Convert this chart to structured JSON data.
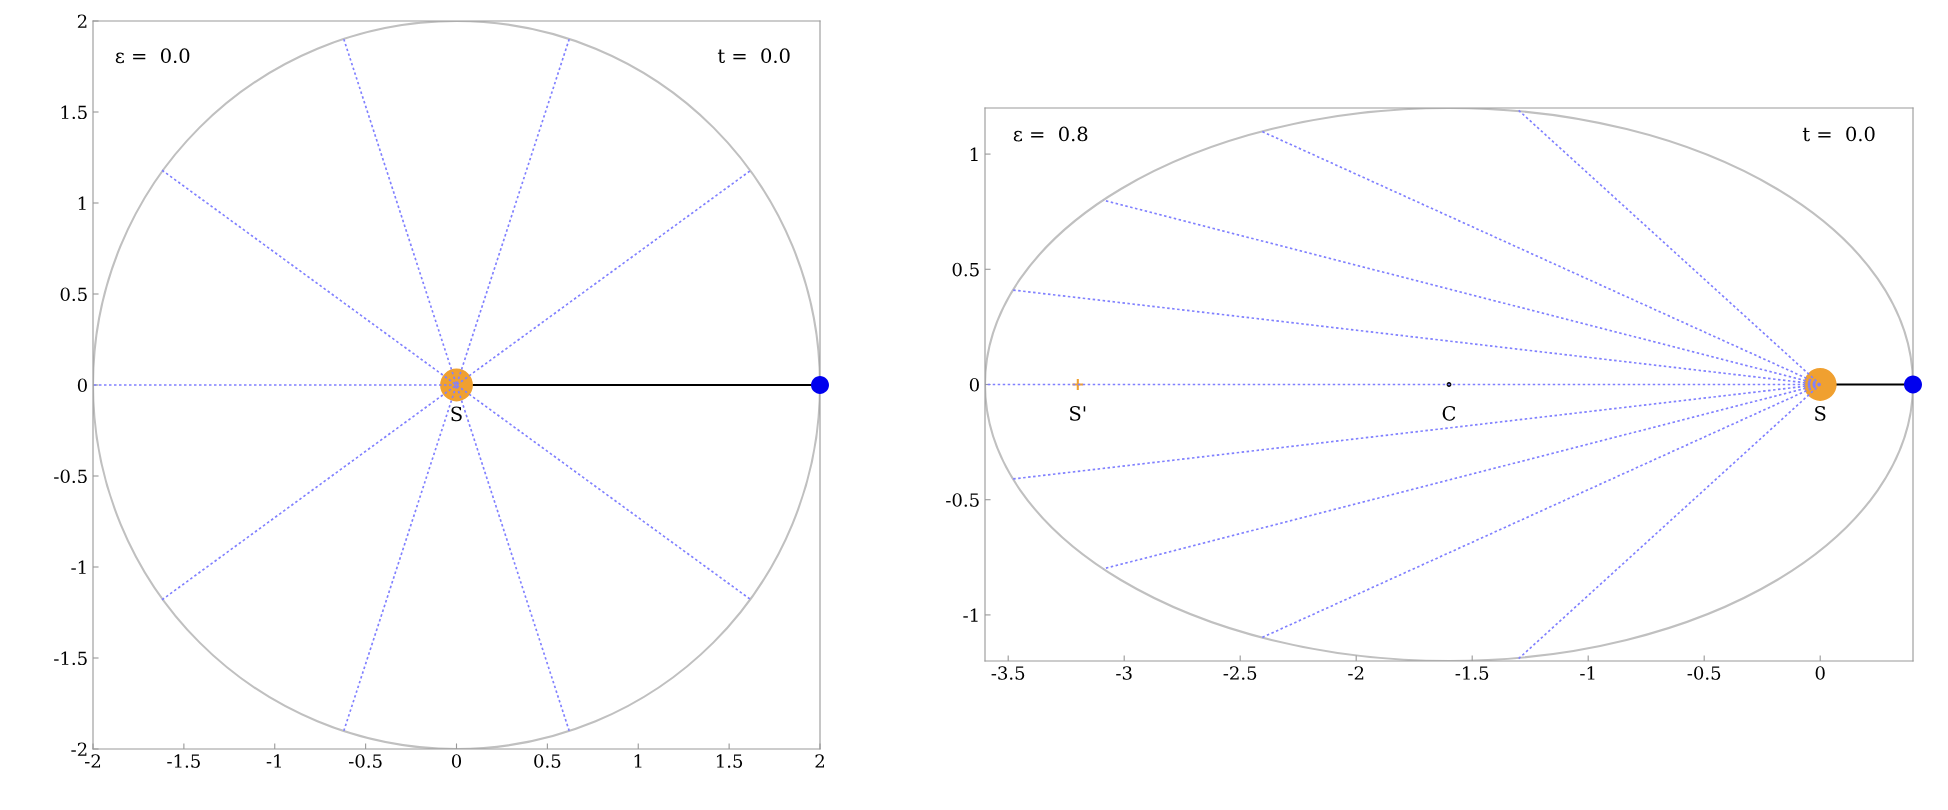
{
  "chart_data": [
    {
      "type": "line",
      "xlim": [
        -2,
        2
      ],
      "ylim": [
        -2,
        2
      ],
      "xticks": [
        -2,
        -1.5,
        -1,
        -0.5,
        0,
        0.5,
        1,
        1.5,
        2
      ],
      "yticks": [
        -2,
        -1.5,
        -1,
        -0.5,
        0,
        0.5,
        1,
        1.5,
        2
      ],
      "grid": false,
      "legend": false,
      "annotations": [
        "ε =  0.0",
        "t =  0.0",
        {
          "text": "S",
          "x": 0,
          "y": 0
        }
      ],
      "series": [
        {
          "color": "#8080ff",
          "line_style": "dotted",
          "marker": "none",
          "x": [
            -1.62,
            1.62
          ],
          "values": [
            -1.18,
            1.18
          ]
        },
        {
          "color": "#8080ff",
          "line_style": "dotted",
          "marker": "none",
          "x": [
            -0.62,
            0.62
          ],
          "values": [
            -1.9,
            1.9
          ]
        },
        {
          "color": "#8080ff",
          "line_style": "dotted",
          "marker": "none",
          "x": [
            -0.62,
            0.62
          ],
          "values": [
            1.9,
            -1.9
          ]
        },
        {
          "color": "#8080ff",
          "line_style": "dotted",
          "marker": "none",
          "x": [
            -1.62,
            1.62
          ],
          "values": [
            1.18,
            -1.18
          ]
        },
        {
          "color": "#8080ff",
          "line_style": "dotted",
          "x": [
            0,
            -2
          ],
          "values": [
            0,
            0
          ]
        },
        {
          "color": "#000000",
          "line_style": "solid",
          "marker": "none",
          "x": [
            0,
            2
          ],
          "values": [
            0,
            0
          ]
        },
        {
          "type": "bubble",
          "color": "#f0a030",
          "x": [
            0
          ],
          "values": [
            0
          ],
          "sizes": [
            1
          ]
        },
        {
          "type": "bubble",
          "color": "#0000ee",
          "x": [
            2
          ],
          "values": [
            0
          ],
          "sizes": [
            0.3
          ]
        }
      ]
    },
    {
      "type": "line",
      "xlim": [
        -3.6,
        0.4
      ],
      "ylim": [
        -1.2,
        1.2
      ],
      "xticks": [
        -3.5,
        -3,
        -2.5,
        -2,
        -1.5,
        -1,
        -0.5,
        0
      ],
      "yticks": [
        -1,
        -0.5,
        0,
        0.5,
        1
      ],
      "grid": false,
      "legend": false,
      "annotations": [
        "ε =  0.8",
        "t =  0.0",
        {
          "text": "S",
          "x": 0,
          "y": 0
        },
        {
          "text": "C",
          "x": -1.6,
          "y": 0
        },
        {
          "text": "S'",
          "x": -3.2,
          "y": 0
        }
      ],
      "series": [
        {
          "color": "#8080ff",
          "line_style": "dotted",
          "marker": "none",
          "x": [
            0,
            -1.3
          ],
          "values": [
            0,
            1.19
          ]
        },
        {
          "color": "#8080ff",
          "line_style": "dotted",
          "marker": "none",
          "x": [
            0,
            -2.41
          ],
          "values": [
            0,
            1.1
          ]
        },
        {
          "color": "#8080ff",
          "line_style": "dotted",
          "marker": "none",
          "x": [
            0,
            -3.09
          ],
          "values": [
            0,
            0.8
          ]
        },
        {
          "color": "#8080ff",
          "line_style": "dotted",
          "marker": "none",
          "x": [
            0,
            -3.48
          ],
          "values": [
            0,
            0.41
          ]
        },
        {
          "color": "#8080ff",
          "line_style": "dotted",
          "marker": "none",
          "x": [
            0,
            -3.6
          ],
          "values": [
            0,
            0
          ]
        },
        {
          "color": "#8080ff",
          "line_style": "dotted",
          "marker": "none",
          "x": [
            0,
            -3.48
          ],
          "values": [
            0,
            -0.41
          ]
        },
        {
          "color": "#8080ff",
          "line_style": "dotted",
          "marker": "none",
          "x": [
            0,
            -3.09
          ],
          "values": [
            0,
            -0.8
          ]
        },
        {
          "color": "#8080ff",
          "line_style": "dotted",
          "marker": "none",
          "x": [
            0,
            -2.41
          ],
          "values": [
            0,
            -1.1
          ]
        },
        {
          "color": "#8080ff",
          "line_style": "dotted",
          "marker": "none",
          "x": [
            0,
            -1.3
          ],
          "values": [
            0,
            -1.19
          ]
        },
        {
          "color": "#000000",
          "line_style": "solid",
          "marker": "none",
          "x": [
            0,
            0.4
          ],
          "values": [
            0,
            0
          ]
        },
        {
          "type": "scatter",
          "color": "#000000",
          "marker": "circle",
          "x": [
            -1.6
          ],
          "values": [
            0
          ]
        },
        {
          "type": "scatter",
          "color": "#f0a030",
          "marker": "cross",
          "x": [
            -3.2
          ],
          "values": [
            0
          ]
        },
        {
          "type": "bubble",
          "color": "#f0a030",
          "x": [
            0
          ],
          "values": [
            0
          ],
          "sizes": [
            1
          ]
        },
        {
          "type": "bubble",
          "color": "#0000ee",
          "x": [
            0.4
          ],
          "values": [
            0
          ],
          "sizes": [
            0.3
          ]
        }
      ]
    }
  ]
}
